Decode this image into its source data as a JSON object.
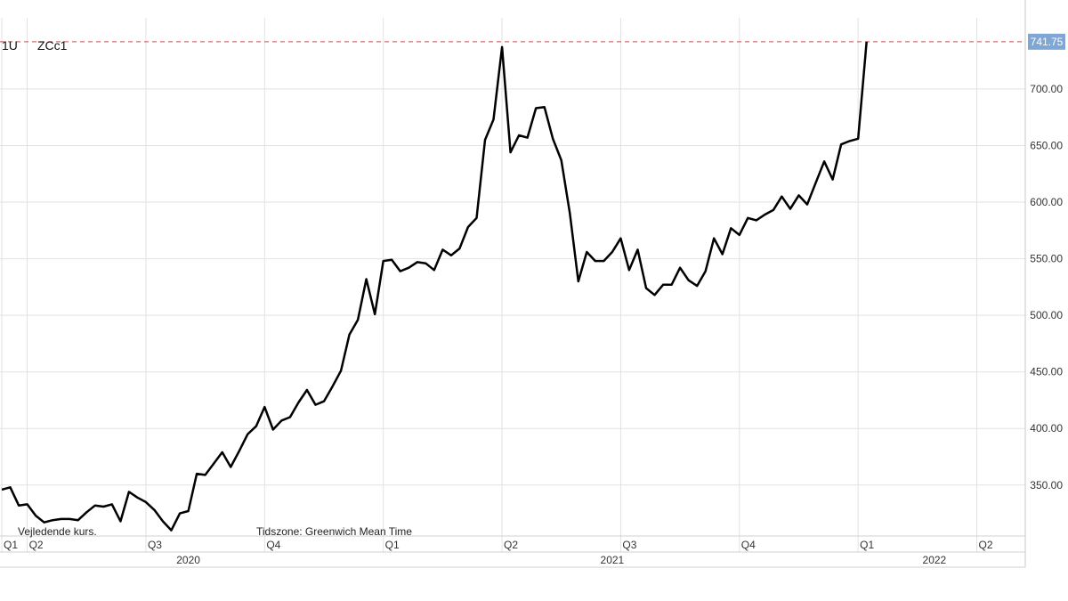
{
  "header": {
    "symbol_prefix": "1U",
    "symbol": "ZCc1"
  },
  "footer": {
    "note": "Vejledende kurs.",
    "timezone": "Tidszone: Greenwich Mean Time"
  },
  "colors": {
    "line": "#000000",
    "grid": "#e2e2e2",
    "ref_line": "#c0504d",
    "last_label_bg": "#7fa7d6"
  },
  "chart_data": {
    "type": "line",
    "title": "",
    "xlabel": "",
    "ylabel": "",
    "y_axis_position": "right",
    "ylim": [
      305,
      755
    ],
    "y_ticks": [
      350,
      400,
      450,
      500,
      550,
      600,
      650,
      700
    ],
    "y_tick_labels": [
      "350.00",
      "400.00",
      "450.00",
      "500.00",
      "550.00",
      "600.00",
      "650.00",
      "700.00"
    ],
    "x_range": [
      0,
      114
    ],
    "quarter_ticks": [
      {
        "label": "Q1",
        "x": 0
      },
      {
        "label": "Q2",
        "x": 3
      },
      {
        "label": "Q3",
        "x": 17
      },
      {
        "label": "Q4",
        "x": 31
      },
      {
        "label": "Q1",
        "x": 45
      },
      {
        "label": "Q2",
        "x": 59
      },
      {
        "label": "Q3",
        "x": 73
      },
      {
        "label": "Q4",
        "x": 87
      },
      {
        "label": "Q1",
        "x": 101
      },
      {
        "label": "Q2",
        "x": 115
      }
    ],
    "year_labels": [
      {
        "label": "2020",
        "x": 22
      },
      {
        "label": "2021",
        "x": 72
      },
      {
        "label": "2022",
        "x": 110
      }
    ],
    "grid": true,
    "reference_line": {
      "value": 741.75,
      "label": "741.75",
      "style": "dashed"
    },
    "series": [
      {
        "values": [
          346,
          348,
          332,
          333,
          323,
          317,
          319,
          320,
          320,
          319,
          326,
          332,
          331,
          333,
          318,
          344,
          339,
          335,
          328,
          318,
          310,
          325,
          327,
          360,
          359,
          369,
          379,
          366,
          380,
          395,
          402,
          419,
          399,
          407,
          410,
          423,
          434,
          421,
          424,
          437,
          451,
          483,
          496,
          532,
          501,
          548,
          549,
          539,
          542,
          547,
          546,
          540,
          558,
          553,
          559,
          578,
          586,
          655,
          673,
          737,
          644,
          659,
          657,
          683,
          684,
          656,
          637,
          590,
          530,
          556,
          548,
          548,
          556,
          568,
          540,
          558,
          524,
          518,
          527,
          527,
          542,
          531,
          526,
          539,
          568,
          554,
          577,
          571,
          586,
          584,
          589,
          593,
          605,
          594,
          606,
          598,
          617,
          636,
          620,
          651,
          654,
          656,
          741.75
        ]
      }
    ]
  }
}
